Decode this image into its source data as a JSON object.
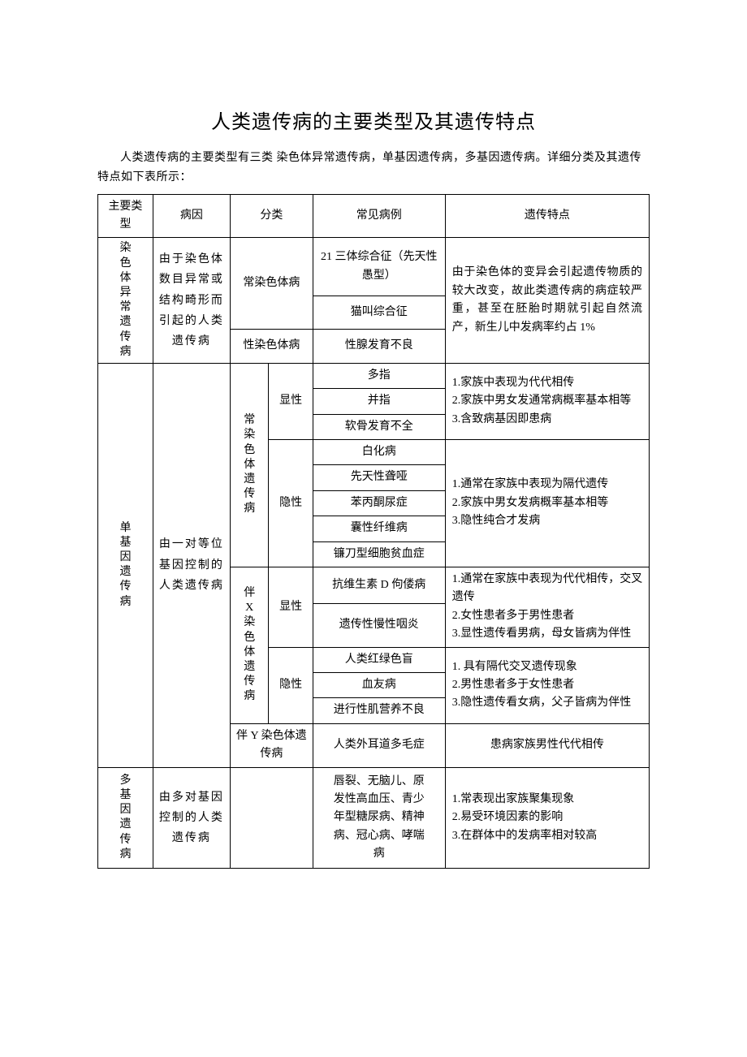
{
  "title": "人类遗传病的主要类型及其遗传特点",
  "intro": "人类遗传病的主要类型有三类 染色体异常遗传病，单基因遗传病，多基因遗传病。详细分类及其遗传特点如下表所示：",
  "header": {
    "c1": "主要类型",
    "c2": "病因",
    "c3": "分类",
    "c4": "常见病例",
    "c5": "遗传特点"
  },
  "chrom": {
    "type": "染色体异常遗传病",
    "cause": "由于染色体数目异常或结构畸形而引起的人类遗传病",
    "sub1": "常染色体病",
    "ex1": "21 三体综合征（先天性愚型）",
    "ex2": "猫叫综合征",
    "sub2": "性染色体病",
    "ex3": "性腺发育不良",
    "trait": "由于染色体的变异会引起遗传物质的较大改变，故此类遗传病的病症较严重，甚至在胚胎时期就引起自然流产，新生儿中发病率约占 1%"
  },
  "single": {
    "type": "单基因遗传病",
    "cause": "由一对等位基因控制的人类遗传病",
    "auto": "常染色体遗传病",
    "xlink": "伴X染色体遗传病",
    "ylink": "伴 Y 染色体遗传病",
    "dom": "显性",
    "rec": "隐性",
    "auto_dom_ex1": "多指",
    "auto_dom_ex2": "并指",
    "auto_dom_ex3": "软骨发育不全",
    "auto_dom_trait": "1.家族中表现为代代相传\n2.家族中男女发通常病概率基本相等\n3.含致病基因即患病",
    "auto_rec_ex1": "白化病",
    "auto_rec_ex2": "先天性聋哑",
    "auto_rec_ex3": "苯丙酮尿症",
    "auto_rec_ex4": "囊性纤维病",
    "auto_rec_ex5": "镰刀型细胞贫血症",
    "auto_rec_trait": "1.通常在家族中表现为隔代遗传\n2.家族中男女发病概率基本相等\n3.隐性纯合才发病",
    "x_dom_ex1": "抗维生素 D 佝偻病",
    "x_dom_ex2": "遗传性慢性咽炎",
    "x_dom_trait": "1.通常在家族中表现为代代相传，交叉遗传\n2.女性患者多于男性患者\n3.显性遗传看男病，母女皆病为伴性",
    "x_rec_ex1": "人类红绿色盲",
    "x_rec_ex2": "血友病",
    "x_rec_ex3": "进行性肌营养不良",
    "x_rec_trait": "1. 具有隔代交叉遗传现象\n2.男性患者多于女性患者\n3.隐性遗传看女病，父子皆病为伴性",
    "y_ex": "人类外耳道多毛症",
    "y_trait": "患病家族男性代代相传"
  },
  "poly": {
    "type": "多基因遗传病",
    "cause": "由多对基因控制的人类遗传病",
    "sub": "",
    "ex": "唇裂、无脑儿、原发性高血压、青少年型糖尿病、精神病、冠心病、哮喘病",
    "trait": "1.常表现出家族聚集现象\n2.易受环境因素的影响\n3.在群体中的发病率相对较高"
  },
  "style": {
    "col_widths_pct": [
      10,
      14,
      7,
      8,
      24,
      37
    ],
    "border_color": "#000000",
    "background": "#ffffff",
    "title_fontsize": 24,
    "body_fontsize": 14
  }
}
